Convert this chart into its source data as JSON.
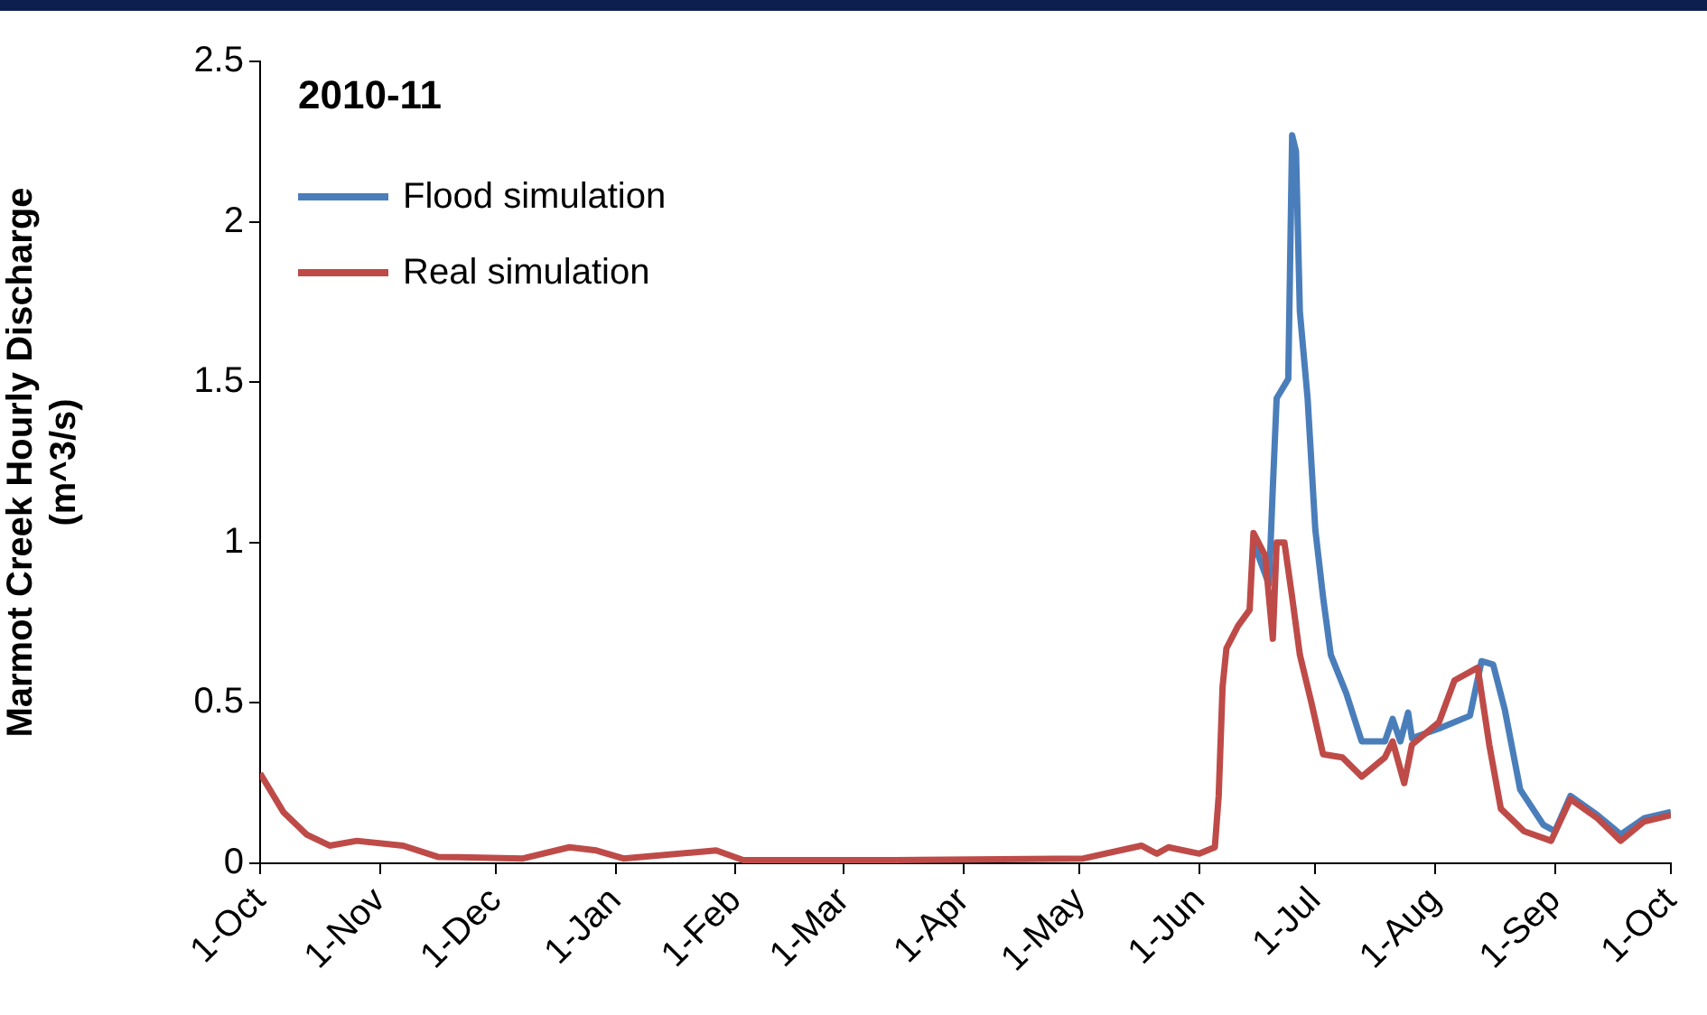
{
  "chart_data": {
    "type": "line",
    "title": "2010-11",
    "ylabel": "Marmot Creek Hourly Discharge\n(m^3/s)",
    "xlim": [
      "2010-10-01",
      "2011-10-01"
    ],
    "xticks": [
      {
        "value": "2010-10-01",
        "label": "1-Oct"
      },
      {
        "value": "2010-11-01",
        "label": "1-Nov"
      },
      {
        "value": "2010-12-01",
        "label": "1-Dec"
      },
      {
        "value": "2011-01-01",
        "label": "1-Jan"
      },
      {
        "value": "2011-02-01",
        "label": "1-Feb"
      },
      {
        "value": "2011-03-01",
        "label": "1-Mar"
      },
      {
        "value": "2011-04-01",
        "label": "1-Apr"
      },
      {
        "value": "2011-05-01",
        "label": "1-May"
      },
      {
        "value": "2011-06-01",
        "label": "1-Jun"
      },
      {
        "value": "2011-07-01",
        "label": "1-Jul"
      },
      {
        "value": "2011-08-01",
        "label": "1-Aug"
      },
      {
        "value": "2011-09-01",
        "label": "1-Sep"
      },
      {
        "value": "2011-10-01",
        "label": "1-Oct"
      }
    ],
    "ylim": [
      0,
      2.5
    ],
    "yticks": [
      0,
      0.5,
      1,
      1.5,
      2,
      2.5
    ],
    "grid": false,
    "legend": "top left",
    "marker": "none",
    "line_style": "solid",
    "series": [
      {
        "name": "Flood simulation",
        "color": "#4a7ebb",
        "x": [
          "2011-06-15",
          "2011-06-19",
          "2011-06-20",
          "2011-06-21",
          "2011-06-24",
          "2011-06-25",
          "2011-06-26",
          "2011-06-27",
          "2011-06-29",
          "2011-07-01",
          "2011-07-03",
          "2011-07-05",
          "2011-07-09",
          "2011-07-13",
          "2011-07-19",
          "2011-07-21",
          "2011-07-23",
          "2011-07-25",
          "2011-07-26",
          "2011-08-02",
          "2011-08-10",
          "2011-08-13",
          "2011-08-16",
          "2011-08-19",
          "2011-08-23",
          "2011-08-29",
          "2011-09-01",
          "2011-09-05",
          "2011-09-12",
          "2011-09-18",
          "2011-09-24",
          "2011-10-01"
        ],
        "values": [
          1.0,
          0.87,
          1.17,
          1.45,
          1.51,
          2.27,
          2.22,
          1.72,
          1.45,
          1.04,
          0.83,
          0.65,
          0.53,
          0.38,
          0.38,
          0.45,
          0.38,
          0.47,
          0.39,
          0.42,
          0.46,
          0.63,
          0.62,
          0.48,
          0.23,
          0.12,
          0.1,
          0.21,
          0.15,
          0.09,
          0.14,
          0.16
        ]
      },
      {
        "name": "Real simulation",
        "color": "#be4b48",
        "x": [
          "2010-10-01",
          "2010-10-07",
          "2010-10-13",
          "2010-10-19",
          "2010-10-26",
          "2010-11-07",
          "2010-11-16",
          "2010-12-08",
          "2010-12-20",
          "2010-12-27",
          "2011-01-03",
          "2011-01-27",
          "2011-02-03",
          "2011-03-14",
          "2011-05-02",
          "2011-05-17",
          "2011-05-21",
          "2011-05-24",
          "2011-06-01",
          "2011-06-05",
          "2011-06-06",
          "2011-06-07",
          "2011-06-08",
          "2011-06-11",
          "2011-06-14",
          "2011-06-15",
          "2011-06-18",
          "2011-06-20",
          "2011-06-21",
          "2011-06-23",
          "2011-06-25",
          "2011-06-27",
          "2011-06-30",
          "2011-07-03",
          "2011-07-08",
          "2011-07-13",
          "2011-07-19",
          "2011-07-21",
          "2011-07-24",
          "2011-07-26",
          "2011-08-02",
          "2011-08-06",
          "2011-08-12",
          "2011-08-15",
          "2011-08-18",
          "2011-08-24",
          "2011-08-31",
          "2011-09-05",
          "2011-09-12",
          "2011-09-18",
          "2011-09-24",
          "2011-10-01"
        ],
        "values": [
          0.28,
          0.16,
          0.09,
          0.055,
          0.07,
          0.055,
          0.02,
          0.015,
          0.05,
          0.04,
          0.015,
          0.04,
          0.01,
          0.01,
          0.015,
          0.055,
          0.03,
          0.05,
          0.03,
          0.05,
          0.21,
          0.55,
          0.67,
          0.74,
          0.79,
          1.03,
          0.96,
          0.7,
          1.0,
          1.0,
          0.83,
          0.65,
          0.5,
          0.34,
          0.33,
          0.27,
          0.33,
          0.38,
          0.25,
          0.37,
          0.44,
          0.57,
          0.61,
          0.37,
          0.17,
          0.1,
          0.07,
          0.2,
          0.14,
          0.07,
          0.13,
          0.15
        ]
      }
    ]
  }
}
